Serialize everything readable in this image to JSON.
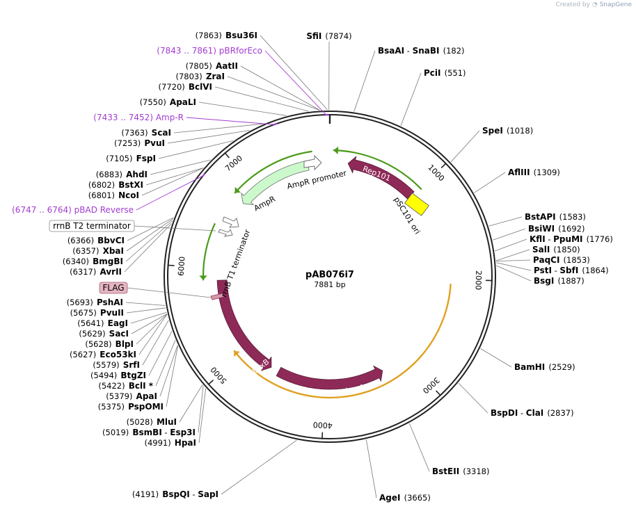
{
  "header": {
    "created_by": "Created by",
    "app_name": "SnapGene"
  },
  "plasmid": {
    "name": "pAB076i7",
    "size_label": "7881 bp",
    "length": 7881
  },
  "colors": {
    "backbone": "#222222",
    "primer": "#a23cd1",
    "feature_dark": "#8e2a57",
    "origin_yellow": "#ffff00",
    "ampr_fill": "#ccf9cc",
    "green_arrow": "#4a9a1a",
    "orange_arrow": "#e0a020"
  },
  "ticks": [
    {
      "pos": 1000,
      "label": "1000"
    },
    {
      "pos": 2000,
      "label": "2000"
    },
    {
      "pos": 3000,
      "label": "3000"
    },
    {
      "pos": 4000,
      "label": "4000"
    },
    {
      "pos": 5000,
      "label": "5000"
    },
    {
      "pos": 6000,
      "label": "6000"
    },
    {
      "pos": 7000,
      "label": "7000"
    }
  ],
  "enzymes": [
    {
      "id": "sfi",
      "names": [
        "SfiI"
      ],
      "pos_label": "(7874)",
      "cut": 7874
    },
    {
      "id": "bsaai",
      "names": [
        "BsaAI",
        "SnaBI"
      ],
      "pos_label": "(182)",
      "cut": 182
    },
    {
      "id": "pci",
      "names": [
        "PciI"
      ],
      "pos_label": "(551)",
      "cut": 551
    },
    {
      "id": "spe",
      "names": [
        "SpeI"
      ],
      "pos_label": "(1018)",
      "cut": 1018
    },
    {
      "id": "afl3",
      "names": [
        "AflIII"
      ],
      "pos_label": "(1309)",
      "cut": 1309
    },
    {
      "id": "bstapi",
      "names": [
        "BstAPI"
      ],
      "pos_label": "(1583)",
      "cut": 1583
    },
    {
      "id": "bsiwi",
      "names": [
        "BsiWI"
      ],
      "pos_label": "(1692)",
      "cut": 1692
    },
    {
      "id": "kfli",
      "names": [
        "KflI",
        "PpuMI"
      ],
      "pos_label": "(1776)",
      "cut": 1776
    },
    {
      "id": "sali",
      "names": [
        "SalI"
      ],
      "pos_label": "(1850)",
      "cut": 1850
    },
    {
      "id": "paqci",
      "names": [
        "PaqCI"
      ],
      "pos_label": "(1853)",
      "cut": 1853
    },
    {
      "id": "psti",
      "names": [
        "PstI",
        "SbfI"
      ],
      "pos_label": "(1864)",
      "cut": 1864
    },
    {
      "id": "bsgi",
      "names": [
        "BsgI"
      ],
      "pos_label": "(1887)",
      "cut": 1887
    },
    {
      "id": "bamhi",
      "names": [
        "BamHI"
      ],
      "pos_label": "(2529)",
      "cut": 2529
    },
    {
      "id": "bspdi",
      "names": [
        "BspDI",
        "ClaI"
      ],
      "pos_label": "(2837)",
      "cut": 2837
    },
    {
      "id": "bsteii",
      "names": [
        "BstEII"
      ],
      "pos_label": "(3318)",
      "cut": 3318
    },
    {
      "id": "agei",
      "names": [
        "AgeI"
      ],
      "pos_label": "(3665)",
      "cut": 3665
    },
    {
      "id": "bspqi",
      "names": [
        "BspQI",
        "SapI"
      ],
      "pos_label": "(4191)",
      "cut": 4191
    },
    {
      "id": "hpai",
      "names": [
        "HpaI"
      ],
      "pos_label": "(4991)",
      "cut": 4991
    },
    {
      "id": "bsmbi",
      "names": [
        "BsmBI",
        "Esp3I"
      ],
      "pos_label": "(5019)",
      "cut": 5019
    },
    {
      "id": "mlui",
      "names": [
        "MluI"
      ],
      "pos_label": "(5028)",
      "cut": 5028
    },
    {
      "id": "pspomi",
      "names": [
        "PspOMI"
      ],
      "pos_label": "(5375)",
      "cut": 5375
    },
    {
      "id": "apai",
      "names": [
        "ApaI"
      ],
      "pos_label": "(5379)",
      "cut": 5379
    },
    {
      "id": "bcli",
      "names": [
        "BclI *"
      ],
      "pos_label": "(5422)",
      "cut": 5422
    },
    {
      "id": "btgzi",
      "names": [
        "BtgZI"
      ],
      "pos_label": "(5494)",
      "cut": 5494
    },
    {
      "id": "srfi",
      "names": [
        "SrfI"
      ],
      "pos_label": "(5579)",
      "cut": 5579
    },
    {
      "id": "eco53ki",
      "names": [
        "Eco53kI"
      ],
      "pos_label": "(5627)",
      "cut": 5627
    },
    {
      "id": "blpi",
      "names": [
        "BlpI"
      ],
      "pos_label": "(5628)",
      "cut": 5628
    },
    {
      "id": "saci",
      "names": [
        "SacI"
      ],
      "pos_label": "(5629)",
      "cut": 5629
    },
    {
      "id": "eagi",
      "names": [
        "EagI"
      ],
      "pos_label": "(5641)",
      "cut": 5641
    },
    {
      "id": "pvuii",
      "names": [
        "PvuII"
      ],
      "pos_label": "(5675)",
      "cut": 5675
    },
    {
      "id": "pshai",
      "names": [
        "PshAI"
      ],
      "pos_label": "(5693)",
      "cut": 5693
    },
    {
      "id": "avrii",
      "names": [
        "AvrII"
      ],
      "pos_label": "(6317)",
      "cut": 6317
    },
    {
      "id": "bmgbi",
      "names": [
        "BmgBI"
      ],
      "pos_label": "(6340)",
      "cut": 6340
    },
    {
      "id": "xbai",
      "names": [
        "XbaI"
      ],
      "pos_label": "(6357)",
      "cut": 6357
    },
    {
      "id": "bbvci",
      "names": [
        "BbvCI"
      ],
      "pos_label": "(6366)",
      "cut": 6366
    },
    {
      "id": "ncoi",
      "names": [
        "NcoI"
      ],
      "pos_label": "(6801)",
      "cut": 6801
    },
    {
      "id": "bstxi",
      "names": [
        "BstXI"
      ],
      "pos_label": "(6802)",
      "cut": 6802
    },
    {
      "id": "ahdi",
      "names": [
        "AhdI"
      ],
      "pos_label": "(6883)",
      "cut": 6883
    },
    {
      "id": "fspi",
      "names": [
        "FspI"
      ],
      "pos_label": "(7105)",
      "cut": 7105
    },
    {
      "id": "pvui",
      "names": [
        "PvuI"
      ],
      "pos_label": "(7253)",
      "cut": 7253
    },
    {
      "id": "scai",
      "names": [
        "ScaI"
      ],
      "pos_label": "(7363)",
      "cut": 7363
    },
    {
      "id": "apali",
      "names": [
        "ApaLI"
      ],
      "pos_label": "(7550)",
      "cut": 7550
    },
    {
      "id": "bclvi",
      "names": [
        "BclVI"
      ],
      "pos_label": "(7720)",
      "cut": 7720
    },
    {
      "id": "zrai",
      "names": [
        "ZraI"
      ],
      "pos_label": "(7803)",
      "cut": 7803
    },
    {
      "id": "aatii",
      "names": [
        "AatII"
      ],
      "pos_label": "(7805)",
      "cut": 7805
    },
    {
      "id": "bsu36i",
      "names": [
        "Bsu36I"
      ],
      "pos_label": "(7863)",
      "cut": 7863
    }
  ],
  "primers": [
    {
      "id": "pbrforeco",
      "range_label": "(7843 .. 7861)",
      "name": "pBRforEco",
      "start": 7843,
      "end": 7861
    },
    {
      "id": "ampr-primer",
      "range_label": "(7433 .. 7452)",
      "name": "Amp-R",
      "start": 7433,
      "end": 7452
    },
    {
      "id": "pbad-reverse",
      "range_label": "(6747 .. 6764)",
      "name": "pBAD Reverse",
      "start": 6747,
      "end": 6764
    }
  ],
  "boxed_labels": [
    {
      "id": "rrnb-t2",
      "text": "rrnB T2 terminator"
    },
    {
      "id": "flag",
      "text": "FLAG"
    }
  ],
  "features": [
    {
      "id": "rep101",
      "name": "Rep101",
      "kind": "cds"
    },
    {
      "id": "psc101-ori",
      "name": "pSC101 ori",
      "kind": "origin"
    },
    {
      "id": "ampr",
      "name": "AmpR",
      "kind": "cds"
    },
    {
      "id": "ampr-promoter",
      "name": "AmpR promoter",
      "kind": "promoter"
    },
    {
      "id": "rrnb-t1",
      "name": "rrnB T1 terminator",
      "kind": "terminator"
    },
    {
      "id": "luxa",
      "name": "LuxA",
      "kind": "cds"
    },
    {
      "id": "luxb",
      "name": "LuxB",
      "kind": "cds"
    }
  ]
}
